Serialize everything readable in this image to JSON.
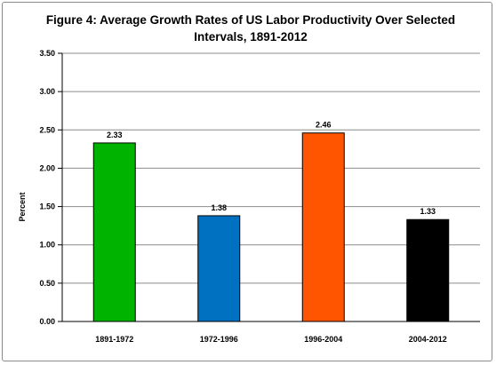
{
  "chart_data": {
    "type": "bar",
    "title_line1": "Figure 4: Average Growth Rates of US Labor Productivity Over Selected",
    "title_line2": "Intervals, 1891-2012",
    "xlabel": "",
    "ylabel": "Percent",
    "categories": [
      "1891-1972",
      "1972-1996",
      "1996-2004",
      "2004-2012"
    ],
    "values": [
      2.33,
      1.38,
      2.46,
      1.33
    ],
    "value_labels": [
      "2.33",
      "1.38",
      "2.46",
      "1.33"
    ],
    "bar_colors": [
      "#00b300",
      "#0070c0",
      "#ff5500",
      "#000000"
    ],
    "ylim": [
      0,
      3.5
    ],
    "y_ticks": [
      "0.00",
      "0.50",
      "1.00",
      "1.50",
      "2.00",
      "2.50",
      "3.00",
      "3.50"
    ],
    "y_tick_values": [
      0,
      0.5,
      1.0,
      1.5,
      2.0,
      2.5,
      3.0,
      3.5
    ],
    "grid": true,
    "legend": "none"
  }
}
